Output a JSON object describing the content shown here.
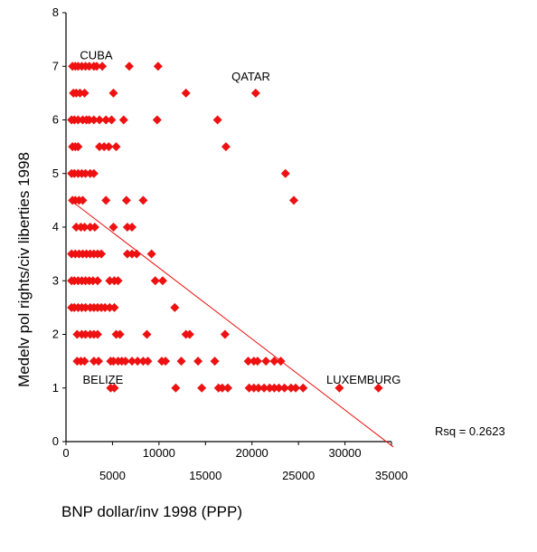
{
  "chart_data": {
    "type": "scatter",
    "xlabel": "BNP dollar/inv 1998 (PPP)",
    "ylabel": "Medelv pol rights/civ liberties 1998",
    "xlim": [
      0,
      35000
    ],
    "ylim": [
      0,
      8
    ],
    "x_ticks_top": [
      "0",
      "10000",
      "20000",
      "30000"
    ],
    "x_ticks_bottom": [
      "5000",
      "15000",
      "25000",
      "35000"
    ],
    "x_tick_values_top": [
      0,
      10000,
      20000,
      30000
    ],
    "x_tick_values_bottom": [
      5000,
      15000,
      25000,
      35000
    ],
    "y_ticks": [
      "0",
      "1",
      "2",
      "3",
      "4",
      "5",
      "6",
      "7",
      "8"
    ],
    "y_tick_values": [
      0,
      1,
      2,
      3,
      4,
      5,
      6,
      7,
      8
    ],
    "grid": false,
    "marker_color": "#ee1111",
    "line_color": "#ee1111",
    "regression_line": {
      "x": [
        500,
        35200
      ],
      "y": [
        4.5,
        -0.1
      ]
    },
    "rsq_label": "Rsq = 0.2623",
    "annotations": [
      {
        "text": "CUBA",
        "x": 1500,
        "y": 7.2
      },
      {
        "text": "QATAR",
        "x": 17800,
        "y": 6.8
      },
      {
        "text": "BELIZE",
        "x": 1800,
        "y": 1.15
      },
      {
        "text": "LUXEMBURG",
        "x": 28000,
        "y": 1.15
      }
    ],
    "points": [
      [
        700,
        7
      ],
      [
        1000,
        7
      ],
      [
        1300,
        7
      ],
      [
        1700,
        7
      ],
      [
        2100,
        7
      ],
      [
        2500,
        7
      ],
      [
        3000,
        7
      ],
      [
        3300,
        7
      ],
      [
        3900,
        7
      ],
      [
        6800,
        7
      ],
      [
        9900,
        7
      ],
      [
        800,
        6.5
      ],
      [
        1100,
        6.5
      ],
      [
        1500,
        6.5
      ],
      [
        2000,
        6.5
      ],
      [
        5100,
        6.5
      ],
      [
        12900,
        6.5
      ],
      [
        20400,
        6.5
      ],
      [
        600,
        6
      ],
      [
        900,
        6
      ],
      [
        1300,
        6
      ],
      [
        1800,
        6
      ],
      [
        2200,
        6
      ],
      [
        2500,
        6
      ],
      [
        3000,
        6
      ],
      [
        3600,
        6
      ],
      [
        4300,
        6
      ],
      [
        4900,
        6
      ],
      [
        6200,
        6
      ],
      [
        9800,
        6
      ],
      [
        16300,
        6
      ],
      [
        700,
        5.5
      ],
      [
        1000,
        5.5
      ],
      [
        1300,
        5.5
      ],
      [
        3600,
        5.5
      ],
      [
        4100,
        5.5
      ],
      [
        4600,
        5.5
      ],
      [
        5400,
        5.5
      ],
      [
        17200,
        5.5
      ],
      [
        600,
        5
      ],
      [
        900,
        5
      ],
      [
        1300,
        5
      ],
      [
        1700,
        5
      ],
      [
        2100,
        5
      ],
      [
        2600,
        5
      ],
      [
        3000,
        5
      ],
      [
        23600,
        5
      ],
      [
        700,
        4.5
      ],
      [
        1000,
        4.5
      ],
      [
        1400,
        4.5
      ],
      [
        1800,
        4.5
      ],
      [
        4300,
        4.5
      ],
      [
        6500,
        4.5
      ],
      [
        8300,
        4.5
      ],
      [
        24500,
        4.5
      ],
      [
        1100,
        4
      ],
      [
        1600,
        4
      ],
      [
        2000,
        4
      ],
      [
        2600,
        4
      ],
      [
        3100,
        4
      ],
      [
        5100,
        4
      ],
      [
        6600,
        4
      ],
      [
        7100,
        4
      ],
      [
        600,
        3.5
      ],
      [
        1000,
        3.5
      ],
      [
        1400,
        3.5
      ],
      [
        1800,
        3.5
      ],
      [
        2200,
        3.5
      ],
      [
        2600,
        3.5
      ],
      [
        3000,
        3.5
      ],
      [
        3400,
        3.5
      ],
      [
        3800,
        3.5
      ],
      [
        6600,
        3.5
      ],
      [
        7100,
        3.5
      ],
      [
        7600,
        3.5
      ],
      [
        9200,
        3.5
      ],
      [
        600,
        3
      ],
      [
        900,
        3
      ],
      [
        1300,
        3
      ],
      [
        1700,
        3
      ],
      [
        2100,
        3
      ],
      [
        2500,
        3
      ],
      [
        2900,
        3
      ],
      [
        3400,
        3
      ],
      [
        4700,
        3
      ],
      [
        5200,
        3
      ],
      [
        5600,
        3
      ],
      [
        9600,
        3
      ],
      [
        10400,
        3
      ],
      [
        600,
        2.5
      ],
      [
        900,
        2.5
      ],
      [
        1300,
        2.5
      ],
      [
        1700,
        2.5
      ],
      [
        2100,
        2.5
      ],
      [
        2600,
        2.5
      ],
      [
        3000,
        2.5
      ],
      [
        3400,
        2.5
      ],
      [
        3800,
        2.5
      ],
      [
        4200,
        2.5
      ],
      [
        4700,
        2.5
      ],
      [
        5200,
        2.5
      ],
      [
        11700,
        2.5
      ],
      [
        1200,
        2
      ],
      [
        1700,
        2
      ],
      [
        2100,
        2
      ],
      [
        2600,
        2
      ],
      [
        3000,
        2
      ],
      [
        3400,
        2
      ],
      [
        5400,
        2
      ],
      [
        5800,
        2
      ],
      [
        8700,
        2
      ],
      [
        12900,
        2
      ],
      [
        13300,
        2
      ],
      [
        17100,
        2
      ],
      [
        1200,
        1.5
      ],
      [
        1600,
        1.5
      ],
      [
        2000,
        1.5
      ],
      [
        3000,
        1.5
      ],
      [
        3500,
        1.5
      ],
      [
        4800,
        1.5
      ],
      [
        5100,
        1.5
      ],
      [
        5600,
        1.5
      ],
      [
        6000,
        1.5
      ],
      [
        6400,
        1.5
      ],
      [
        7100,
        1.5
      ],
      [
        7700,
        1.5
      ],
      [
        8300,
        1.5
      ],
      [
        8800,
        1.5
      ],
      [
        10300,
        1.5
      ],
      [
        10700,
        1.5
      ],
      [
        12400,
        1.5
      ],
      [
        14200,
        1.5
      ],
      [
        16000,
        1.5
      ],
      [
        19600,
        1.5
      ],
      [
        20200,
        1.5
      ],
      [
        20600,
        1.5
      ],
      [
        21500,
        1.5
      ],
      [
        22400,
        1.5
      ],
      [
        23100,
        1.5
      ],
      [
        4800,
        1
      ],
      [
        5200,
        1
      ],
      [
        11800,
        1
      ],
      [
        14600,
        1
      ],
      [
        16400,
        1
      ],
      [
        16800,
        1
      ],
      [
        17400,
        1
      ],
      [
        19700,
        1
      ],
      [
        20200,
        1
      ],
      [
        20700,
        1
      ],
      [
        21300,
        1
      ],
      [
        21900,
        1
      ],
      [
        22400,
        1
      ],
      [
        22900,
        1
      ],
      [
        23500,
        1
      ],
      [
        24200,
        1
      ],
      [
        24700,
        1
      ],
      [
        25500,
        1
      ],
      [
        29400,
        1
      ],
      [
        33600,
        1
      ]
    ]
  }
}
